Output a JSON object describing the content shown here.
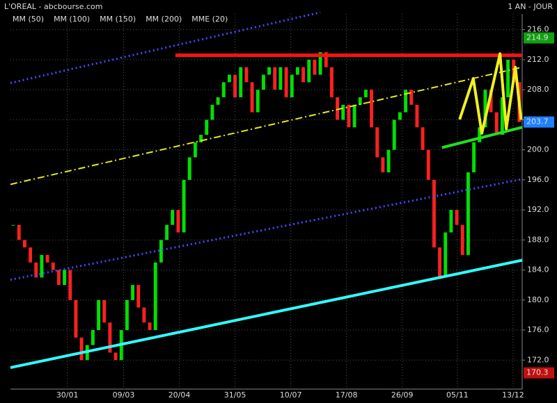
{
  "chart_data": {
    "type": "candlestick",
    "title": "L'OREAL - abcbourse.com",
    "period": "1 AN - JOUR",
    "legend": [
      {
        "name": "MM (50)",
        "color": "#ff3030"
      },
      {
        "name": "MM (100)",
        "color": "#30e0e0"
      },
      {
        "name": "MM (150)",
        "color": "#e0e030"
      },
      {
        "name": "MM (200)",
        "color": "#e040e0"
      },
      {
        "name": "MME (20)",
        "color": "#30e030"
      }
    ],
    "up_color": "#00e000",
    "down_color": "#ff2020",
    "values": [
      190,
      188,
      187,
      185,
      183,
      186,
      185,
      184,
      182,
      184,
      180,
      175,
      172,
      174,
      176,
      180,
      177,
      173,
      172,
      176,
      180,
      182,
      179,
      177,
      176,
      185,
      188,
      190,
      192,
      189,
      196,
      199,
      201,
      202,
      204,
      206,
      207,
      209,
      210,
      207,
      211,
      209,
      205,
      208,
      210,
      211,
      208,
      211,
      207,
      210,
      211,
      209,
      212,
      210,
      213,
      211,
      207,
      204,
      206,
      203,
      206,
      207,
      208,
      203,
      199,
      197,
      200,
      204,
      205,
      208,
      206,
      203,
      200,
      196,
      187,
      183,
      189,
      192,
      190,
      186,
      197,
      201,
      203,
      208,
      205,
      202,
      207,
      212,
      209,
      203.7
    ],
    "xlim": [
      -0.5,
      89.5
    ],
    "xticks": [
      {
        "value": 9.5,
        "label": "30/01"
      },
      {
        "value": 19.4,
        "label": "09/03"
      },
      {
        "value": 29.2,
        "label": "20/04"
      },
      {
        "value": 39,
        "label": "31/05"
      },
      {
        "value": 48.8,
        "label": "10/07"
      },
      {
        "value": 58.6,
        "label": "17/08"
      },
      {
        "value": 68.4,
        "label": "26/09"
      },
      {
        "value": 78.1,
        "label": "05/11"
      },
      {
        "value": 87.9,
        "label": "13/12"
      }
    ],
    "ylim": [
      168.6,
      218.1
    ],
    "yticks": [
      {
        "value": 172,
        "label": "172.0"
      },
      {
        "value": 176,
        "label": "176.0"
      },
      {
        "value": 180,
        "label": "180.0"
      },
      {
        "value": 184,
        "label": "184.0"
      },
      {
        "value": 188,
        "label": "188.0"
      },
      {
        "value": 192,
        "label": "192.0"
      },
      {
        "value": 196,
        "label": "196.0"
      },
      {
        "value": 200,
        "label": "200.0"
      },
      {
        "value": 204,
        "label": "204.0"
      },
      {
        "value": 208,
        "label": "208.0"
      },
      {
        "value": 212,
        "label": "212.0"
      },
      {
        "value": 216,
        "label": "216.0"
      }
    ],
    "grid": true,
    "price_tags": [
      {
        "value": 214.9,
        "color": "#10a010"
      },
      {
        "value": 203.7,
        "color": "#2080ff"
      },
      {
        "value": 170.3,
        "color": "#c01010"
      }
    ],
    "trendlines": [
      {
        "color": "#4848ff",
        "style": "dotted",
        "width": 3,
        "x": [
          -0.5,
          54
        ],
        "y": [
          208.9,
          218.3
        ]
      },
      {
        "color": "#4848ff",
        "style": "dotted",
        "width": 3,
        "x": [
          -0.5,
          89.5
        ],
        "y": [
          182.7,
          196.1
        ]
      },
      {
        "color": "#e8e820",
        "style": "dashdot",
        "width": 2,
        "x": [
          -0.5,
          89.5
        ],
        "y": [
          195.4,
          211.0
        ]
      },
      {
        "color": "#30ffff",
        "style": "solid",
        "width": 4,
        "x": [
          -0.5,
          89.5
        ],
        "y": [
          171.0,
          185.3
        ]
      },
      {
        "color": "#ff1010",
        "style": "solid",
        "width": 5,
        "x": [
          28.5,
          89.5
        ],
        "y": [
          212.6,
          212.6
        ]
      },
      {
        "color": "#20e020",
        "style": "solid",
        "width": 4,
        "x": [
          75.4,
          89.5
        ],
        "y": [
          200.3,
          203.0
        ]
      },
      {
        "color": "#f0f020",
        "style": "solid",
        "width": 4,
        "x": [
          78.5,
          80.9,
          82.4,
          85.6,
          86.7,
          88.3,
          89.3
        ],
        "y": [
          204.05,
          209.5,
          202.2,
          212.8,
          202.8,
          211.0,
          204.0
        ]
      }
    ]
  }
}
